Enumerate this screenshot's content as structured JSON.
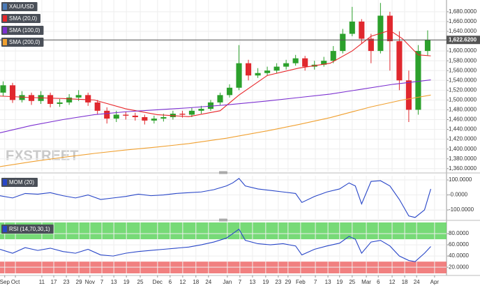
{
  "chart_data": [
    {
      "type": "candlestick",
      "title": "XAU/USD",
      "title_color": "#4a7ab8",
      "x": [
        1,
        4,
        7,
        10,
        13,
        16,
        19,
        22,
        25,
        28,
        31,
        34,
        37,
        40,
        43,
        46,
        49,
        52,
        55,
        58,
        61,
        64,
        67,
        70,
        73,
        76,
        79,
        82,
        85,
        88,
        91,
        94,
        97,
        100,
        103,
        106,
        109,
        112,
        115,
        118,
        121,
        124,
        127,
        130,
        133,
        136
      ],
      "open": [
        1515,
        1530,
        1500,
        1510,
        1498,
        1510,
        1492,
        1495,
        1505,
        1510,
        1495,
        1478,
        1462,
        1470,
        1468,
        1465,
        1458,
        1462,
        1465,
        1472,
        1470,
        1478,
        1482,
        1495,
        1510,
        1525,
        1575,
        1550,
        1555,
        1560,
        1568,
        1575,
        1585,
        1568,
        1572,
        1580,
        1600,
        1635,
        1660,
        1625,
        1600,
        1672,
        1620,
        1540,
        1480,
        1600
      ],
      "high": [
        1538,
        1535,
        1518,
        1515,
        1518,
        1515,
        1502,
        1512,
        1520,
        1515,
        1500,
        1485,
        1478,
        1476,
        1474,
        1470,
        1468,
        1472,
        1478,
        1478,
        1484,
        1488,
        1500,
        1515,
        1532,
        1612,
        1582,
        1565,
        1568,
        1575,
        1582,
        1592,
        1590,
        1580,
        1588,
        1610,
        1645,
        1690,
        1665,
        1635,
        1698,
        1680,
        1640,
        1560,
        1612,
        1642
      ],
      "low": [
        1508,
        1494,
        1495,
        1490,
        1492,
        1485,
        1486,
        1490,
        1498,
        1488,
        1470,
        1452,
        1455,
        1460,
        1458,
        1450,
        1452,
        1456,
        1460,
        1464,
        1465,
        1472,
        1478,
        1490,
        1505,
        1520,
        1540,
        1545,
        1550,
        1555,
        1562,
        1570,
        1560,
        1562,
        1568,
        1575,
        1595,
        1630,
        1615,
        1575,
        1595,
        1560,
        1520,
        1455,
        1470,
        1590
      ],
      "close": [
        1530,
        1500,
        1510,
        1498,
        1510,
        1492,
        1495,
        1505,
        1510,
        1495,
        1478,
        1462,
        1470,
        1468,
        1465,
        1458,
        1462,
        1465,
        1472,
        1470,
        1478,
        1482,
        1495,
        1510,
        1525,
        1575,
        1550,
        1555,
        1560,
        1568,
        1575,
        1585,
        1568,
        1572,
        1580,
        1600,
        1635,
        1660,
        1625,
        1600,
        1672,
        1620,
        1540,
        1480,
        1600,
        1622.62
      ],
      "up_color": "#2ca02c",
      "down_color": "#e0282e",
      "series": [
        {
          "name": "SMA (20,0)",
          "color": "#e8262a",
          "x": [
            0,
            10,
            20,
            30,
            40,
            50,
            60,
            70,
            76,
            85,
            95,
            105,
            112,
            118,
            124,
            128,
            133,
            137
          ],
          "values": [
            1508,
            1505,
            1503,
            1500,
            1482,
            1470,
            1466,
            1478,
            1510,
            1550,
            1565,
            1575,
            1600,
            1630,
            1642,
            1625,
            1592,
            1590
          ]
        },
        {
          "name": "SMA (100,0)",
          "color": "#7b2fd0",
          "x": [
            0,
            10,
            20,
            30,
            40,
            50,
            60,
            72,
            85,
            95,
            105,
            115,
            125,
            137
          ],
          "values": [
            1433,
            1448,
            1460,
            1470,
            1476,
            1480,
            1484,
            1490,
            1498,
            1505,
            1512,
            1522,
            1532,
            1541
          ]
        },
        {
          "name": "SMA (200,0)",
          "color": "#f0a030",
          "x": [
            0,
            10,
            20,
            30,
            40,
            50,
            60,
            72,
            85,
            95,
            105,
            118,
            128,
            137
          ],
          "values": [
            1364,
            1374,
            1383,
            1391,
            1398,
            1404,
            1411,
            1422,
            1437,
            1450,
            1464,
            1486,
            1500,
            1510
          ]
        }
      ],
      "xlim": [
        0,
        142
      ],
      "ylim": [
        1354,
        1704
      ],
      "yticks": [
        {
          "value": 1360,
          "label": "1,360.0000"
        },
        {
          "value": 1380,
          "label": "1,380.0000"
        },
        {
          "value": 1400,
          "label": "1,400.0000"
        },
        {
          "value": 1420,
          "label": "1,420.0000"
        },
        {
          "value": 1440,
          "label": "1,440.0000"
        },
        {
          "value": 1460,
          "label": "1,460.0000"
        },
        {
          "value": 1480,
          "label": "1,480.0000"
        },
        {
          "value": 1500,
          "label": "1,500.0000"
        },
        {
          "value": 1520,
          "label": "1,520.0000"
        },
        {
          "value": 1540,
          "label": "1,540.0000"
        },
        {
          "value": 1560,
          "label": "1,560.0000"
        },
        {
          "value": 1580,
          "label": "1,580.0000"
        },
        {
          "value": 1600,
          "label": "1,600.0000"
        },
        {
          "value": 1620,
          "label": "1,620.0000"
        },
        {
          "value": 1640,
          "label": "1,640.0000"
        },
        {
          "value": 1660,
          "label": "1,660.0000"
        },
        {
          "value": 1680,
          "label": "1,680.0000"
        }
      ],
      "last_price": {
        "value": 1622.62,
        "label": "1,622.6200"
      },
      "watermark": "FXSTREET",
      "grid": true
    },
    {
      "type": "line",
      "series": [
        {
          "name": "MOM (20)",
          "color": "#2846c8",
          "x": [
            0,
            4,
            8,
            12,
            16,
            20,
            24,
            28,
            32,
            36,
            40,
            44,
            48,
            52,
            56,
            60,
            64,
            68,
            72,
            74,
            76,
            78,
            82,
            86,
            90,
            94,
            96,
            100,
            104,
            108,
            111,
            113,
            115,
            118,
            121,
            124,
            127,
            130,
            132,
            135,
            137
          ],
          "values": [
            -5,
            -20,
            10,
            5,
            15,
            -5,
            -20,
            0,
            -30,
            -20,
            -10,
            5,
            -5,
            0,
            10,
            15,
            20,
            35,
            60,
            80,
            110,
            60,
            40,
            30,
            20,
            10,
            -50,
            -10,
            20,
            40,
            80,
            60,
            -60,
            90,
            95,
            60,
            -30,
            -140,
            -150,
            -100,
            40
          ]
        }
      ],
      "xlim": [
        0,
        142
      ],
      "ylim": [
        -160,
        128
      ],
      "yticks": [
        {
          "value": 100,
          "label": "100.0000"
        },
        {
          "value": 0,
          "label": "-0.0000"
        },
        {
          "value": -100,
          "label": "-100.0000"
        }
      ],
      "grid": true
    },
    {
      "type": "line",
      "series": [
        {
          "name": "RSI (14,70,30,1)",
          "color": "#2846c8",
          "x": [
            0,
            4,
            8,
            12,
            16,
            20,
            24,
            28,
            32,
            36,
            40,
            44,
            48,
            52,
            56,
            60,
            64,
            68,
            72,
            74,
            76,
            78,
            82,
            86,
            90,
            94,
            96,
            100,
            104,
            108,
            111,
            113,
            115,
            118,
            121,
            124,
            127,
            130,
            132,
            135,
            137
          ],
          "values": [
            52,
            45,
            55,
            50,
            54,
            48,
            45,
            52,
            42,
            40,
            45,
            48,
            50,
            52,
            54,
            56,
            60,
            65,
            72,
            80,
            88,
            68,
            62,
            60,
            62,
            58,
            42,
            52,
            58,
            63,
            75,
            70,
            45,
            65,
            68,
            58,
            40,
            32,
            30,
            45,
            57
          ]
        }
      ],
      "xlim": [
        0,
        142
      ],
      "ylim": [
        9,
        100
      ],
      "overbought": 70,
      "oversold": 30,
      "yticks": [
        {
          "value": 80,
          "label": "80.0000"
        },
        {
          "value": 60,
          "label": "60.0000"
        },
        {
          "value": 40,
          "label": "40.0000"
        },
        {
          "value": 20,
          "label": "20.0000"
        }
      ],
      "xticks": [
        {
          "value": 1.5,
          "label": "Sep"
        },
        {
          "value": 4.9,
          "label": "Oct"
        },
        {
          "value": 13.3,
          "label": "11"
        },
        {
          "value": 17.1,
          "label": "17"
        },
        {
          "value": 21.1,
          "label": "23"
        },
        {
          "value": 25.1,
          "label": "29"
        },
        {
          "value": 28.6,
          "label": "Nov"
        },
        {
          "value": 32.4,
          "label": "7"
        },
        {
          "value": 36.2,
          "label": "13"
        },
        {
          "value": 40.2,
          "label": "19"
        },
        {
          "value": 44.6,
          "label": "25"
        },
        {
          "value": 50.1,
          "label": "Dec"
        },
        {
          "value": 54.1,
          "label": "6"
        },
        {
          "value": 58.1,
          "label": "12"
        },
        {
          "value": 62.3,
          "label": "18"
        },
        {
          "value": 66.3,
          "label": "24"
        },
        {
          "value": 72.3,
          "label": "Jan"
        },
        {
          "value": 76.3,
          "label": "7"
        },
        {
          "value": 80.3,
          "label": "13"
        },
        {
          "value": 84.5,
          "label": "19"
        },
        {
          "value": 88.5,
          "label": "23"
        },
        {
          "value": 91.6,
          "label": "29"
        },
        {
          "value": 95.6,
          "label": "Feb"
        },
        {
          "value": 100.3,
          "label": "7"
        },
        {
          "value": 104.3,
          "label": "13"
        },
        {
          "value": 108,
          "label": "19"
        },
        {
          "value": 112,
          "label": "25"
        },
        {
          "value": 116.5,
          "label": "Mar"
        },
        {
          "value": 120.3,
          "label": "6"
        },
        {
          "value": 124.7,
          "label": "12"
        },
        {
          "value": 128.7,
          "label": "18"
        },
        {
          "value": 132.5,
          "label": "24"
        },
        {
          "value": 138.2,
          "label": "Apr"
        }
      ],
      "grid": true
    }
  ]
}
